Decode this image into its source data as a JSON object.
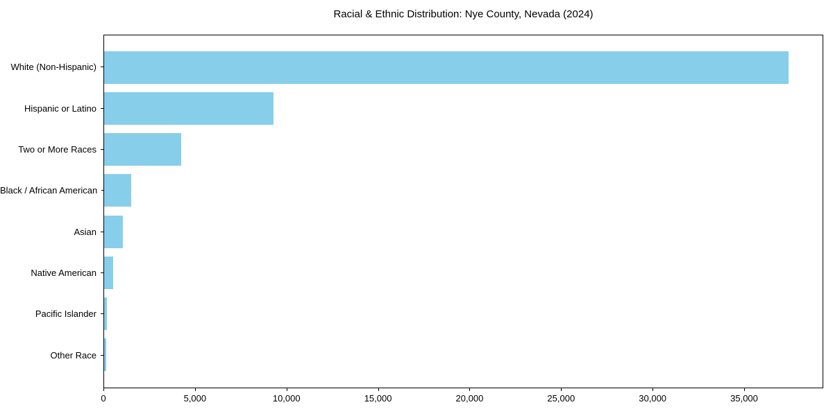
{
  "chart_data": {
    "type": "bar",
    "orientation": "horizontal",
    "title": "Racial & Ethnic Distribution: Nye County, Nevada (2024)",
    "categories": [
      "White (Non-Hispanic)",
      "Hispanic or Latino",
      "Two or More Races",
      "Black / African American",
      "Asian",
      "Native American",
      "Pacific Islander",
      "Other Race"
    ],
    "values": [
      37450,
      9260,
      4210,
      1500,
      1010,
      480,
      140,
      105
    ],
    "xlabel": "",
    "ylabel": "",
    "xlim": [
      0,
      39322
    ],
    "xticks": {
      "values": [
        0,
        5000,
        10000,
        15000,
        20000,
        25000,
        30000,
        35000
      ],
      "labels": [
        "0",
        "5,000",
        "10,000",
        "15,000",
        "20,000",
        "25,000",
        "30,000",
        "35,000"
      ]
    },
    "bar_color": "#87CEEB",
    "background_color": "#FFFFFF",
    "axis_color": "#000000",
    "grid": false,
    "legend": false
  }
}
